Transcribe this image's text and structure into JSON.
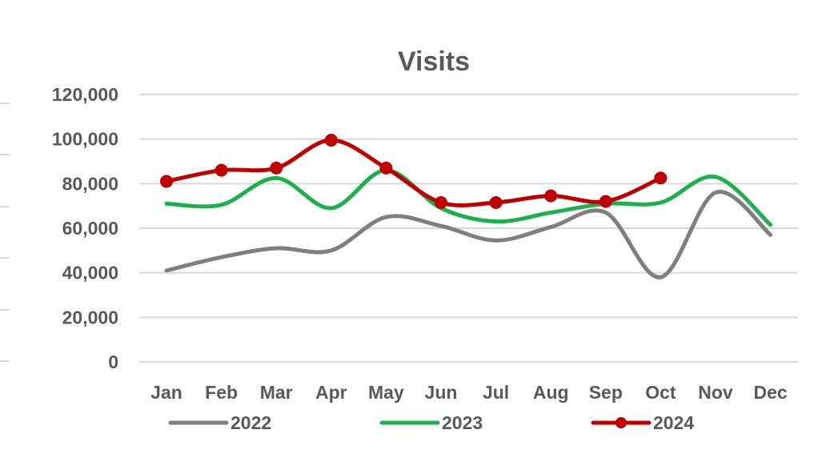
{
  "chart_data": {
    "type": "line",
    "title": "Visits",
    "xlabel": "",
    "ylabel": "",
    "categories": [
      "Jan",
      "Feb",
      "Mar",
      "Apr",
      "May",
      "Jun",
      "Jul",
      "Aug",
      "Sep",
      "Oct",
      "Nov",
      "Dec"
    ],
    "y_ticks": [
      "0",
      "20,000",
      "40,000",
      "60,000",
      "80,000",
      "100,000",
      "120,000"
    ],
    "ylim": [
      0,
      120000
    ],
    "grid": true,
    "smooth": true,
    "legend_position": "bottom",
    "series": [
      {
        "name": "2022",
        "color": "#7f7f7f",
        "markers": false,
        "values": [
          41000,
          47000,
          51000,
          50000,
          65000,
          61000,
          54500,
          60500,
          67000,
          38000,
          76000,
          57000
        ]
      },
      {
        "name": "2023",
        "color": "#1fb04e",
        "markers": false,
        "values": [
          71000,
          70500,
          82500,
          69000,
          86000,
          69000,
          63000,
          67000,
          71000,
          71500,
          83000,
          61500
        ]
      },
      {
        "name": "2024",
        "color": "#c00000",
        "markers": true,
        "values": [
          81000,
          86000,
          87000,
          99500,
          87000,
          71500,
          71500,
          74500,
          72000,
          82500,
          null,
          null
        ]
      }
    ]
  }
}
